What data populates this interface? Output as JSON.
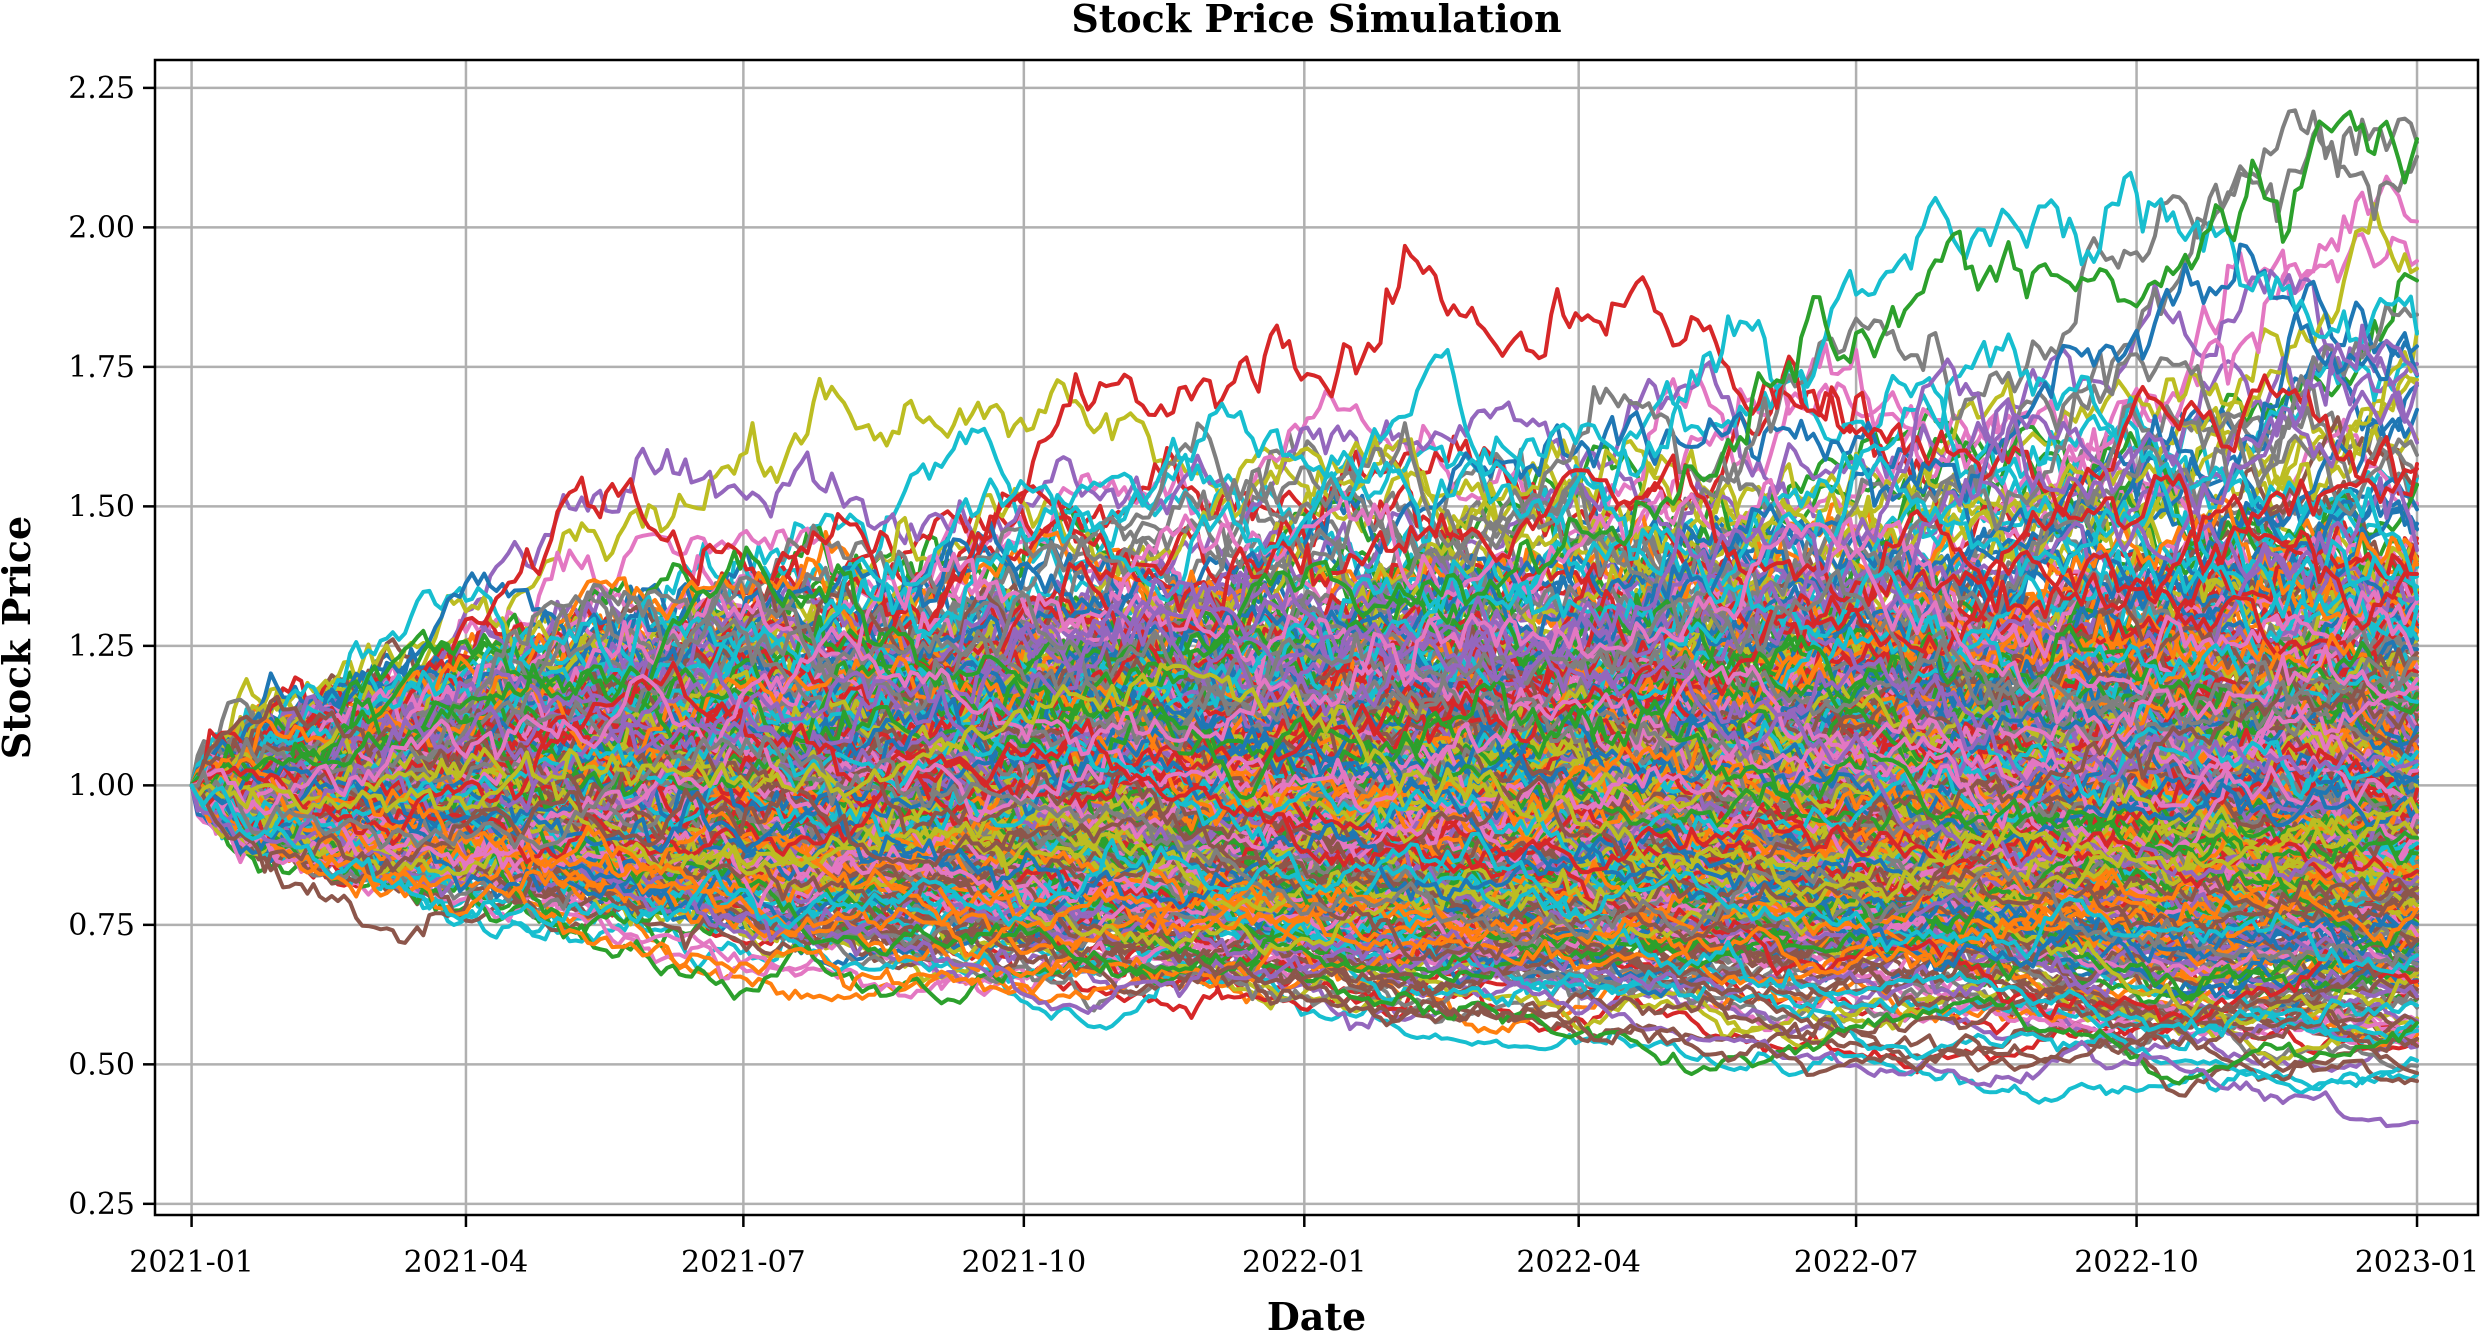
{
  "chart_data": {
    "type": "line",
    "title": "Stock Price Simulation",
    "xlabel": "Date",
    "ylabel": "Stock Price",
    "x_start": "2021-01-01",
    "x_end": "2023-01-01",
    "x_ticks": [
      "2021-01",
      "2021-04",
      "2021-07",
      "2021-10",
      "2022-01",
      "2022-04",
      "2022-07",
      "2022-10",
      "2023-01"
    ],
    "y_ticks": [
      "0.25",
      "0.50",
      "0.75",
      "1.00",
      "1.25",
      "1.50",
      "1.75",
      "2.00",
      "2.25"
    ],
    "ylim": [
      0.25,
      2.3
    ],
    "grid": true,
    "legend": "none",
    "initial_price": 1.0,
    "num_series": 500,
    "series_summary": {
      "max_price_observed": 2.21,
      "min_price_observed": 0.34,
      "final_max": 2.1,
      "final_min": 0.34
    },
    "colors": [
      "#1f77b4",
      "#ff7f0e",
      "#2ca02c",
      "#d62728",
      "#9467bd",
      "#8c564b",
      "#e377c2",
      "#7f7f7f",
      "#bcbd22",
      "#17becf"
    ]
  }
}
